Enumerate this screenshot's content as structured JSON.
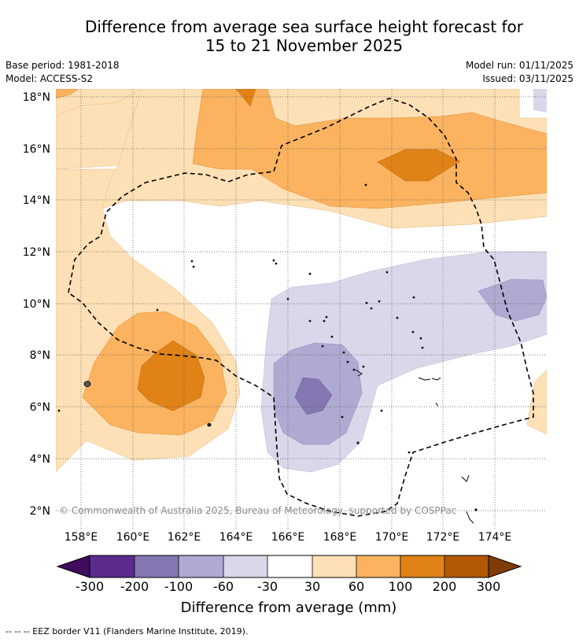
{
  "title": {
    "line1": "Difference from average sea surface height forecast for",
    "line2": "15 to 21 November 2025"
  },
  "meta": {
    "base_period": "Base period: 1981-2018",
    "model": "Model: ACCESS-S2",
    "model_run": "Model run: 01/11/2025",
    "issued": "Issued: 03/11/2025"
  },
  "map": {
    "lat_labels": [
      "18°N",
      "16°N",
      "14°N",
      "12°N",
      "10°N",
      "8°N",
      "6°N",
      "4°N",
      "2°N"
    ],
    "lon_labels": [
      "158°E",
      "160°E",
      "162°E",
      "164°E",
      "166°E",
      "168°E",
      "170°E",
      "172°E",
      "174°E"
    ],
    "copyright": "© Commonwealth of Australia 2025, Bureau of Meteorology, supported by COSPPac"
  },
  "colorbar": {
    "colors": [
      "#3f0d5b",
      "#5c2b8e",
      "#8577b2",
      "#aeaad1",
      "#d8d8ea",
      "#ffffff",
      "#fee0b6",
      "#fbb35f",
      "#e08216",
      "#b35906",
      "#7f3b08"
    ],
    "labels": [
      "-300",
      "-200",
      "-100",
      "-60",
      "-30",
      "30",
      "60",
      "100",
      "200",
      "300"
    ],
    "title": "Difference from average (mm)"
  },
  "footnote": "--  --  -- EEZ border V11 (Flanders Marine Institute, 2019)."
}
